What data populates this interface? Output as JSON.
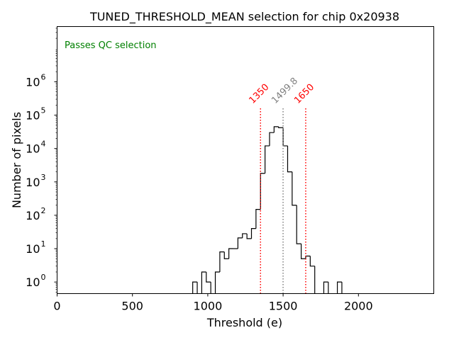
{
  "chart_data": {
    "type": "histogram",
    "title": "TUNED_THRESHOLD_MEAN selection for chip 0x20938",
    "xlabel": "Threshold (e)",
    "ylabel": "Number of pixels",
    "xlim": [
      0,
      2500
    ],
    "ylim": [
      0.45,
      45000000
    ],
    "yscale": "log",
    "grid": false,
    "x_ticks": [
      {
        "value": 0,
        "label": "0"
      },
      {
        "value": 500,
        "label": "500"
      },
      {
        "value": 1000,
        "label": "1000"
      },
      {
        "value": 1500,
        "label": "1500"
      },
      {
        "value": 2000,
        "label": "2000"
      }
    ],
    "y_ticks": [
      {
        "value": 1,
        "base": "10",
        "exp": "0"
      },
      {
        "value": 10,
        "base": "10",
        "exp": "1"
      },
      {
        "value": 100,
        "base": "10",
        "exp": "2"
      },
      {
        "value": 1000,
        "base": "10",
        "exp": "3"
      },
      {
        "value": 10000,
        "base": "10",
        "exp": "4"
      },
      {
        "value": 100000,
        "base": "10",
        "exp": "5"
      },
      {
        "value": 1000000,
        "base": "10",
        "exp": "6"
      }
    ],
    "bin_width": 30,
    "bin_edges_start": 900,
    "counts": [
      1,
      0,
      2,
      1,
      0,
      2,
      8,
      5,
      10,
      10,
      21,
      28,
      20,
      40,
      150,
      1800,
      12000,
      30000,
      45000,
      42000,
      12000,
      2000,
      200,
      14,
      5,
      6,
      3,
      0,
      0,
      1,
      0,
      0,
      1,
      0
    ],
    "annotation": {
      "text": "Passes QC selection",
      "color": "#008000"
    },
    "vlines": [
      {
        "x": 1350,
        "label": "1350",
        "color": "#ff0000",
        "style": "dotted"
      },
      {
        "x": 1499.8,
        "label": "1499.8",
        "color": "#808080",
        "style": "dotted"
      },
      {
        "x": 1650,
        "label": "1650",
        "color": "#ff0000",
        "style": "dotted"
      }
    ],
    "vline_top": 160000
  }
}
